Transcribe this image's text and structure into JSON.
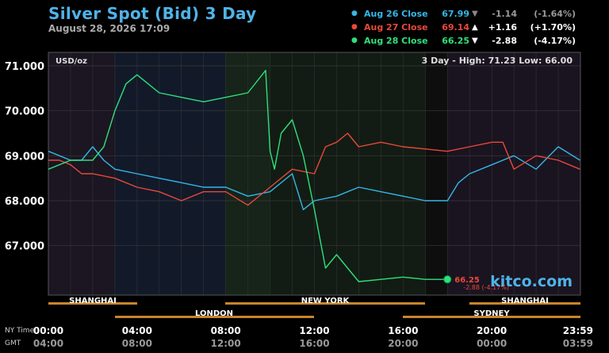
{
  "header": {
    "title": "Silver Spot (Bid) 3 Day",
    "subtitle": "August 28, 2026 17:09"
  },
  "legend": [
    {
      "name": "Aug 26 Close",
      "value": "67.99",
      "arrow": "▼",
      "change": "-1.14",
      "pct": "(-1.64%)",
      "color": "#35b7e6",
      "flat": true
    },
    {
      "name": "Aug 27 Close",
      "value": "69.14",
      "arrow": "▲",
      "change": "+1.16",
      "pct": "(+1.70%)",
      "color": "#e8483a",
      "flat": false
    },
    {
      "name": "Aug 28 Close",
      "value": "66.25",
      "arrow": "▼",
      "change": "-2.88",
      "pct": "(-4.17%)",
      "color": "#2fe07a",
      "flat": false
    }
  ],
  "plot": {
    "unit_label": "USD/oz",
    "range_text": "3 Day - High: 71.23  Low: 66.00",
    "last_value": "66.25",
    "last_change": "-2.88 (-4.17%)",
    "watermark": "kitco.com"
  },
  "time_labels": {
    "ny_label": "NY Time",
    "gmt_label": "GMT",
    "ny": [
      "00:00",
      "04:00",
      "08:00",
      "12:00",
      "16:00",
      "20:00",
      "23:59"
    ],
    "gmt": [
      "04:00",
      "08:00",
      "12:00",
      "16:00",
      "20:00",
      "00:00",
      "03:59"
    ]
  },
  "sessions_upper": [
    "SHANGHAI",
    "NEW YORK",
    "SHANGHAI"
  ],
  "sessions_lower": [
    "LONDON",
    "SYDNEY"
  ],
  "colors": {
    "aug26": "#35b7e6",
    "aug27": "#e8483a",
    "aug28": "#2fe07a",
    "session_bar": "#c8852a",
    "title": "#4fb3e8"
  },
  "chart_data": {
    "type": "line",
    "title": "Silver Spot (Bid) 3 Day",
    "ylabel": "USD/oz",
    "ylim": [
      65.9,
      71.3
    ],
    "xlim": [
      0,
      24
    ],
    "xlabel": "NY Time",
    "yticks": [
      "71.000",
      "70.000",
      "69.000",
      "68.000",
      "67.000"
    ],
    "series": [
      {
        "name": "Aug 26 Close",
        "x": [
          0,
          0.5,
          1,
          1.5,
          2,
          2.5,
          3,
          4,
          5,
          6,
          7,
          8,
          9,
          10,
          11,
          11.5,
          12,
          13,
          14,
          15,
          16,
          17,
          18,
          18.5,
          19,
          20,
          21,
          22,
          23,
          23.98
        ],
        "y": [
          69.1,
          69.0,
          68.9,
          68.9,
          69.2,
          68.9,
          68.7,
          68.6,
          68.5,
          68.4,
          68.3,
          68.3,
          68.1,
          68.2,
          68.6,
          67.8,
          68.0,
          68.1,
          68.3,
          68.2,
          68.1,
          68.0,
          68.0,
          68.4,
          68.6,
          68.8,
          69.0,
          68.7,
          69.2,
          68.9
        ]
      },
      {
        "name": "Aug 27 Close",
        "x": [
          0,
          0.5,
          1,
          1.5,
          2,
          3,
          4,
          5,
          6,
          7,
          8,
          9,
          10,
          11,
          12,
          12.5,
          13,
          13.5,
          14,
          15,
          16,
          17,
          18,
          19,
          20,
          20.5,
          21,
          22,
          23,
          23.98
        ],
        "y": [
          68.9,
          68.9,
          68.8,
          68.6,
          68.6,
          68.5,
          68.3,
          68.2,
          68.0,
          68.2,
          68.2,
          67.9,
          68.3,
          68.7,
          68.6,
          69.2,
          69.3,
          69.5,
          69.2,
          69.3,
          69.2,
          69.15,
          69.1,
          69.2,
          69.3,
          69.3,
          68.7,
          69.0,
          68.9,
          68.7
        ]
      },
      {
        "name": "Aug 28 Close",
        "x": [
          0,
          1,
          2,
          2.5,
          3,
          3.5,
          4,
          5,
          6,
          7,
          8,
          9,
          9.8,
          10,
          10.2,
          10.5,
          11,
          11.5,
          12,
          12.5,
          13,
          13.5,
          14,
          15,
          16,
          17,
          18
        ],
        "y": [
          68.7,
          68.9,
          68.9,
          69.2,
          70.0,
          70.6,
          70.8,
          70.4,
          70.3,
          70.2,
          70.3,
          70.4,
          70.9,
          69.1,
          68.7,
          69.5,
          69.8,
          69.0,
          67.8,
          66.5,
          66.8,
          66.5,
          66.2,
          66.25,
          66.3,
          66.25,
          66.25
        ]
      }
    ]
  }
}
